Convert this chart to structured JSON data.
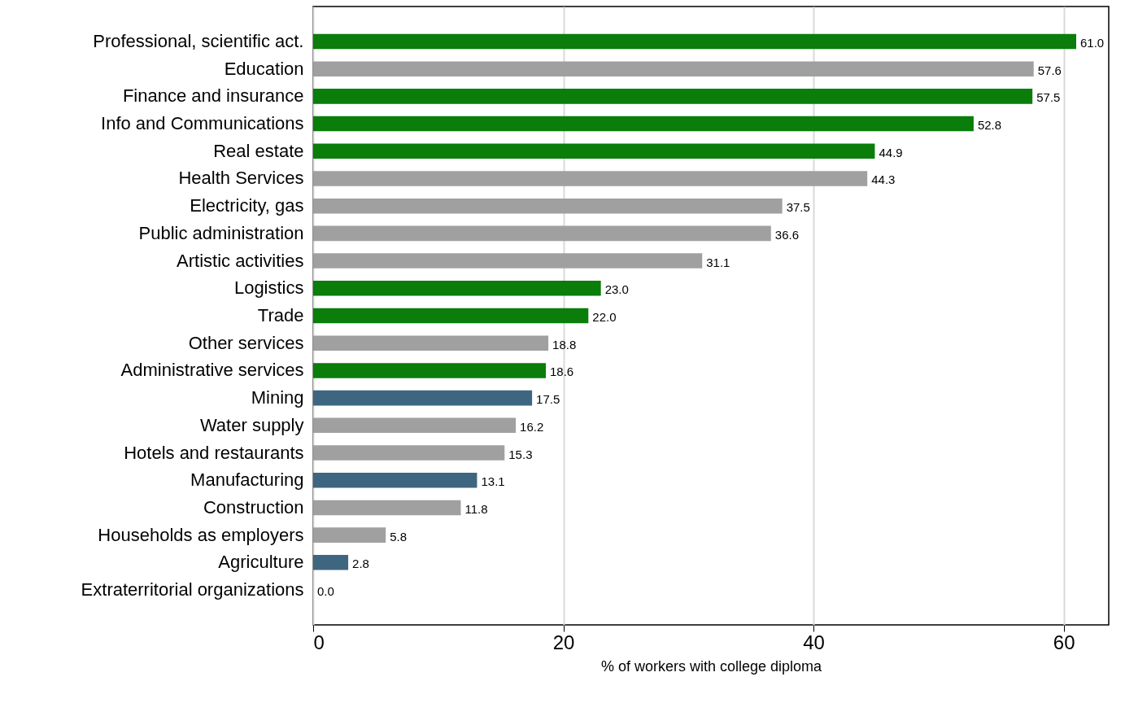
{
  "chart_data": {
    "type": "bar",
    "orientation": "horizontal",
    "xlabel": "% of workers with college diploma",
    "categories": [
      "Professional, scientific act.",
      "Education",
      "Finance and insurance",
      "Info and Communications",
      "Real estate",
      "Health Services",
      "Electricity, gas",
      "Public administration",
      "Artistic activities",
      "Logistics",
      "Trade",
      "Other services",
      "Administrative services",
      "Mining",
      "Water supply",
      "Hotels and restaurants",
      "Manufacturing",
      "Construction",
      "Households as employers",
      "Agriculture",
      "Extraterritorial organizations"
    ],
    "values": [
      61.0,
      57.6,
      57.5,
      52.8,
      44.9,
      44.3,
      37.5,
      36.6,
      31.1,
      23.0,
      22.0,
      18.8,
      18.6,
      17.5,
      16.2,
      15.3,
      13.1,
      11.8,
      5.8,
      2.8,
      0.0
    ],
    "value_labels": [
      "61.0",
      "57.6",
      "57.5",
      "52.8",
      "44.9",
      "44.3",
      "37.5",
      "36.6",
      "31.1",
      "23.0",
      "22.0",
      "18.8",
      "18.6",
      "17.5",
      "16.2",
      "15.3",
      "13.1",
      "11.8",
      "5.8",
      "2.8",
      "0.0"
    ],
    "colors": [
      "#0a7d0a",
      "#a0a0a0",
      "#0a7d0a",
      "#0a7d0a",
      "#0a7d0a",
      "#a0a0a0",
      "#a0a0a0",
      "#a0a0a0",
      "#a0a0a0",
      "#0a7d0a",
      "#0a7d0a",
      "#a0a0a0",
      "#0a7d0a",
      "#3e6680",
      "#a0a0a0",
      "#a0a0a0",
      "#3e6680",
      "#a0a0a0",
      "#a0a0a0",
      "#3e6680",
      "#a0a0a0"
    ],
    "xlim": [
      0,
      63.6
    ],
    "xticks": [
      0,
      20,
      40,
      60
    ],
    "grid": "x"
  }
}
